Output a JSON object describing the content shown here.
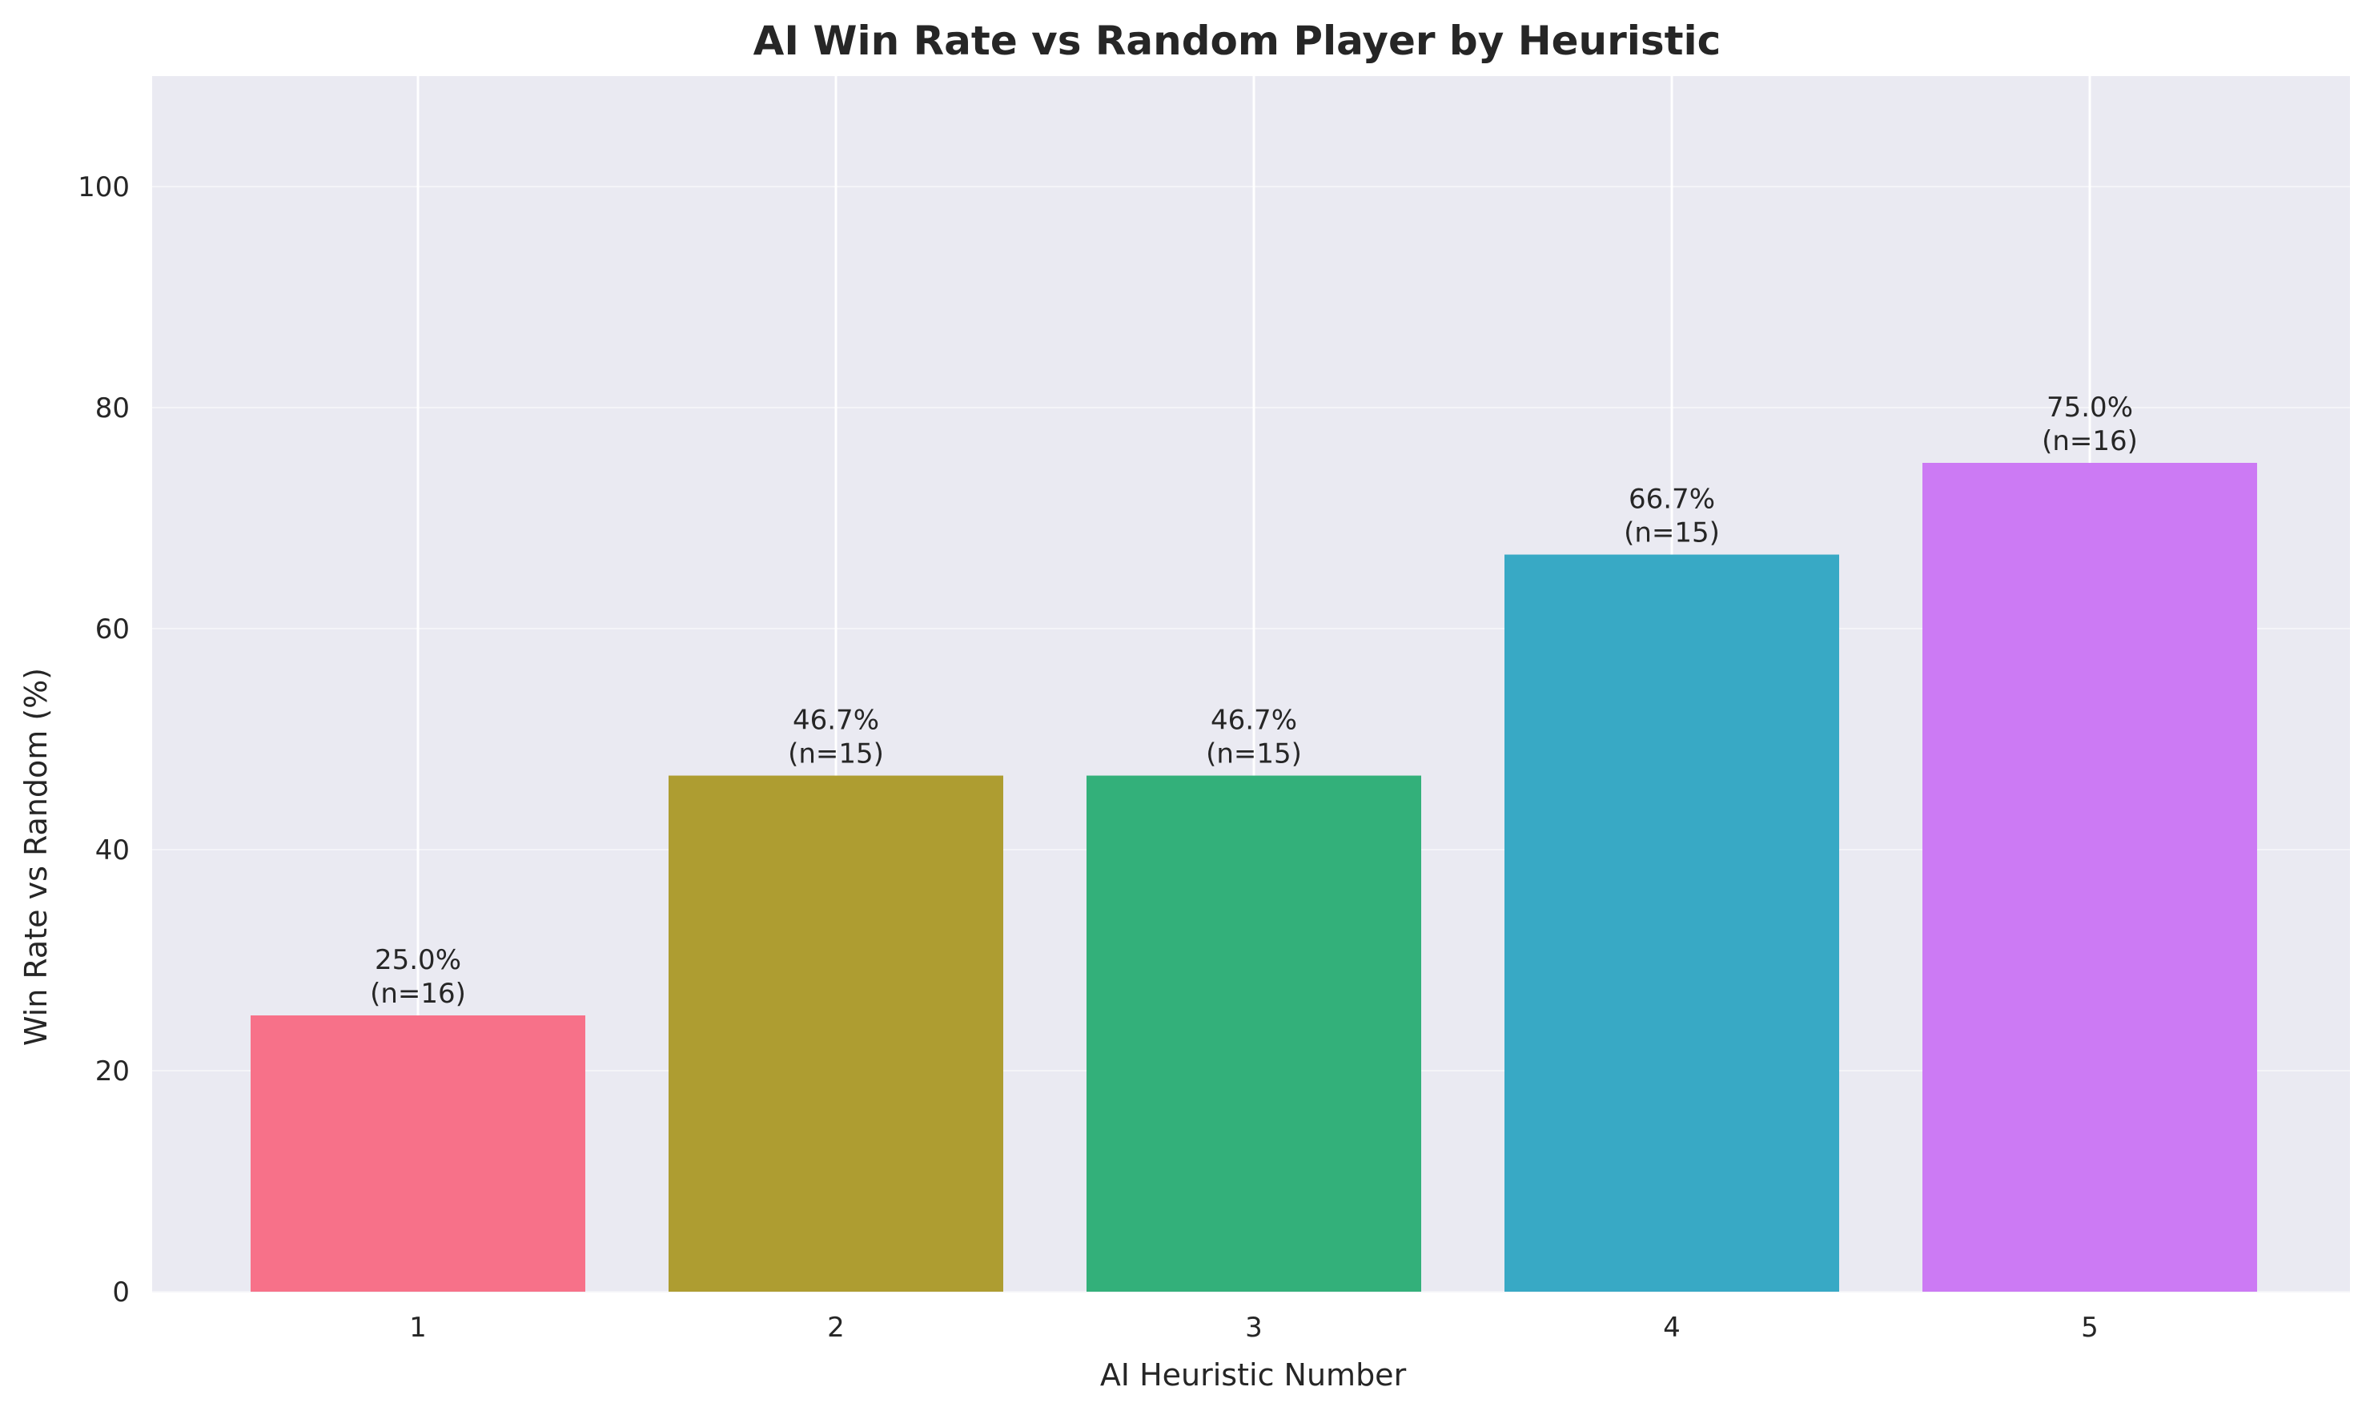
{
  "chart_data": {
    "type": "bar",
    "title": "AI Win Rate vs Random Player by Heuristic",
    "xlabel": "AI Heuristic Number",
    "ylabel": "Win Rate vs Random (%)",
    "categories": [
      "1",
      "2",
      "3",
      "4",
      "5"
    ],
    "values": [
      25.0,
      46.7,
      46.7,
      66.7,
      75.0
    ],
    "value_labels": [
      "25.0%",
      "46.7%",
      "46.7%",
      "66.7%",
      "75.0%"
    ],
    "n_labels": [
      "(n=16)",
      "(n=15)",
      "(n=15)",
      "(n=15)",
      "(n=16)"
    ],
    "bar_colors": [
      "#f77189",
      "#ae9d31",
      "#33b07a",
      "#38a9c5",
      "#cc7af4"
    ],
    "ylim": [
      0,
      110
    ],
    "yticks": [
      0,
      20,
      40,
      60,
      80,
      100
    ],
    "ytick_labels": [
      "0",
      "20",
      "40",
      "60",
      "80",
      "100"
    ],
    "grid": true,
    "background_color": "#eaeaf2",
    "grid_color": "#ffffff"
  }
}
